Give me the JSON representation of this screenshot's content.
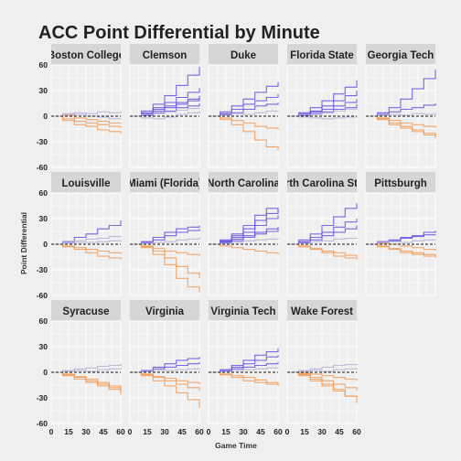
{
  "chart_data": {
    "type": "line",
    "title": "ACC Point Differential by Minute",
    "xlabel": "Game Time",
    "ylabel": "Point Differential",
    "xlim": [
      0,
      60
    ],
    "ylim": [
      -60,
      60
    ],
    "x_ticks": [
      0,
      15,
      30,
      45,
      60
    ],
    "x_tick_labels": [
      "0",
      "15",
      "30",
      "45",
      "60"
    ],
    "y_ticks": [
      -60,
      -30,
      0,
      30,
      60
    ],
    "y_tick_labels": [
      "-60",
      "-30",
      "0",
      "30",
      "60"
    ],
    "grid": true,
    "zero_line": "dashed",
    "colors": {
      "win": "#6a4fe0",
      "loss": "#f29a55",
      "even": "#b8b0d8"
    },
    "x": [
      0,
      10,
      20,
      30,
      40,
      50,
      60
    ],
    "panels": [
      {
        "team": "Boston College",
        "games": [
          [
            0,
            2,
            4,
            3,
            5,
            4,
            6
          ],
          [
            0,
            -3,
            -6,
            -8,
            -10,
            -12,
            -14
          ],
          [
            0,
            -5,
            -10,
            -12,
            -16,
            -18,
            -20
          ],
          [
            0,
            1,
            -2,
            -4,
            -6,
            -8,
            -9
          ],
          [
            0,
            3,
            2,
            0,
            -1,
            -3,
            -4
          ]
        ]
      },
      {
        "team": "Clemson",
        "games": [
          [
            0,
            6,
            14,
            24,
            36,
            48,
            58
          ],
          [
            0,
            4,
            10,
            16,
            22,
            28,
            33
          ],
          [
            0,
            2,
            6,
            10,
            14,
            18,
            22
          ],
          [
            0,
            3,
            8,
            12,
            16,
            20,
            24
          ],
          [
            0,
            1,
            4,
            6,
            10,
            12,
            15
          ],
          [
            0,
            -2,
            -3,
            -1,
            2,
            4,
            6
          ],
          [
            0,
            2,
            3,
            5,
            7,
            9,
            10
          ]
        ]
      },
      {
        "team": "Duke",
        "games": [
          [
            0,
            5,
            12,
            20,
            28,
            35,
            40
          ],
          [
            0,
            3,
            8,
            14,
            18,
            22,
            26
          ],
          [
            0,
            2,
            4,
            8,
            12,
            14,
            16
          ],
          [
            0,
            -4,
            -10,
            -18,
            -28,
            -36,
            -40
          ],
          [
            0,
            -2,
            -5,
            -8,
            -12,
            -14,
            -16
          ],
          [
            0,
            1,
            3,
            2,
            4,
            6,
            5
          ]
        ]
      },
      {
        "team": "Florida State",
        "games": [
          [
            0,
            4,
            10,
            18,
            26,
            34,
            42
          ],
          [
            0,
            3,
            6,
            12,
            18,
            24,
            30
          ],
          [
            0,
            2,
            5,
            8,
            12,
            16,
            20
          ],
          [
            0,
            1,
            3,
            5,
            8,
            10,
            14
          ],
          [
            0,
            2,
            2,
            4,
            6,
            8,
            10
          ],
          [
            0,
            -1,
            -2,
            -3,
            -2,
            -1,
            0
          ]
        ]
      },
      {
        "team": "Georgia Tech",
        "games": [
          [
            0,
            4,
            10,
            20,
            32,
            44,
            55
          ],
          [
            0,
            2,
            5,
            8,
            10,
            13,
            15
          ],
          [
            0,
            -3,
            -8,
            -12,
            -16,
            -20,
            -24
          ],
          [
            0,
            -4,
            -10,
            -14,
            -18,
            -22,
            -26
          ],
          [
            0,
            -2,
            -5,
            -8,
            -10,
            -12,
            -14
          ],
          [
            0,
            1,
            2,
            1,
            3,
            2,
            4
          ]
        ]
      },
      {
        "team": "Louisville",
        "games": [
          [
            0,
            3,
            8,
            12,
            18,
            22,
            28
          ],
          [
            0,
            2,
            4,
            6,
            7,
            9,
            10
          ],
          [
            0,
            -3,
            -6,
            -10,
            -14,
            -16,
            -18
          ],
          [
            0,
            -2,
            -4,
            -6,
            -8,
            -10,
            -12
          ],
          [
            0,
            1,
            2,
            2,
            3,
            4,
            5
          ]
        ]
      },
      {
        "team": "Miami (Florida)",
        "games": [
          [
            0,
            3,
            8,
            14,
            18,
            20,
            22
          ],
          [
            0,
            2,
            5,
            10,
            14,
            16,
            18
          ],
          [
            0,
            -4,
            -12,
            -24,
            -40,
            -50,
            -56
          ],
          [
            0,
            -3,
            -8,
            -16,
            -26,
            -34,
            -40
          ],
          [
            0,
            -2,
            -5,
            -8,
            -10,
            -12,
            -14
          ],
          [
            0,
            1,
            2,
            3,
            5,
            6,
            8
          ]
        ]
      },
      {
        "team": "North Carolina",
        "games": [
          [
            0,
            5,
            12,
            22,
            34,
            42,
            38
          ],
          [
            0,
            4,
            10,
            18,
            28,
            36,
            40
          ],
          [
            0,
            3,
            8,
            14,
            22,
            30,
            34
          ],
          [
            0,
            2,
            6,
            10,
            14,
            18,
            20
          ],
          [
            0,
            2,
            4,
            8,
            12,
            15,
            18
          ],
          [
            0,
            -2,
            -4,
            -6,
            -8,
            -10,
            -12
          ],
          [
            0,
            1,
            2,
            4,
            5,
            6,
            7
          ]
        ]
      },
      {
        "team": "North Carolina State",
        "games": [
          [
            0,
            5,
            12,
            22,
            32,
            42,
            48
          ],
          [
            0,
            3,
            8,
            14,
            20,
            26,
            30
          ],
          [
            0,
            2,
            5,
            10,
            14,
            18,
            22
          ],
          [
            0,
            -3,
            -6,
            -10,
            -14,
            -16,
            -18
          ],
          [
            0,
            -2,
            -5,
            -8,
            -10,
            -13,
            -15
          ],
          [
            0,
            1,
            3,
            4,
            6,
            7,
            8
          ]
        ]
      },
      {
        "team": "Pittsburgh",
        "games": [
          [
            0,
            2,
            4,
            8,
            10,
            14,
            16
          ],
          [
            0,
            3,
            5,
            7,
            9,
            11,
            12
          ],
          [
            0,
            -2,
            -5,
            -8,
            -10,
            -12,
            -14
          ],
          [
            0,
            -3,
            -6,
            -10,
            -12,
            -14,
            -16
          ],
          [
            0,
            1,
            0,
            -2,
            -4,
            -6,
            -8
          ],
          [
            0,
            2,
            3,
            2,
            4,
            5,
            6
          ]
        ]
      },
      {
        "team": "Syracuse",
        "games": [
          [
            0,
            2,
            4,
            5,
            7,
            8,
            10
          ],
          [
            0,
            -3,
            -6,
            -10,
            -14,
            -18,
            -22
          ],
          [
            0,
            -2,
            -5,
            -8,
            -12,
            -16,
            -20
          ],
          [
            0,
            -4,
            -8,
            -12,
            -16,
            -20,
            -26
          ],
          [
            0,
            1,
            2,
            1,
            3,
            4,
            5
          ]
        ]
      },
      {
        "team": "Virginia",
        "games": [
          [
            0,
            2,
            6,
            10,
            14,
            16,
            18
          ],
          [
            0,
            1,
            4,
            6,
            8,
            10,
            12
          ],
          [
            0,
            -4,
            -10,
            -16,
            -24,
            -32,
            -42
          ],
          [
            0,
            -3,
            -6,
            -10,
            -14,
            -18,
            -22
          ],
          [
            0,
            -2,
            -5,
            -7,
            -10,
            -12,
            -14
          ],
          [
            0,
            1,
            2,
            2,
            3,
            4,
            5
          ]
        ]
      },
      {
        "team": "Virginia Tech",
        "games": [
          [
            0,
            3,
            8,
            14,
            20,
            24,
            28
          ],
          [
            0,
            2,
            6,
            10,
            14,
            18,
            20
          ],
          [
            0,
            1,
            4,
            6,
            8,
            10,
            12
          ],
          [
            0,
            -3,
            -6,
            -10,
            -12,
            -14,
            -16
          ],
          [
            0,
            -2,
            -4,
            -6,
            -9,
            -12,
            -14
          ],
          [
            0,
            1,
            2,
            3,
            4,
            5,
            6
          ]
        ]
      },
      {
        "team": "Wake Forest",
        "games": [
          [
            0,
            2,
            4,
            6,
            8,
            9,
            10
          ],
          [
            0,
            -3,
            -8,
            -14,
            -20,
            -28,
            -36
          ],
          [
            0,
            -4,
            -10,
            -16,
            -22,
            -28,
            -30
          ],
          [
            0,
            -2,
            -6,
            -10,
            -14,
            -18,
            -22
          ],
          [
            0,
            -1,
            -2,
            -4,
            -6,
            -8,
            -10
          ],
          [
            0,
            1,
            2,
            1,
            3,
            4,
            5
          ]
        ]
      }
    ]
  }
}
